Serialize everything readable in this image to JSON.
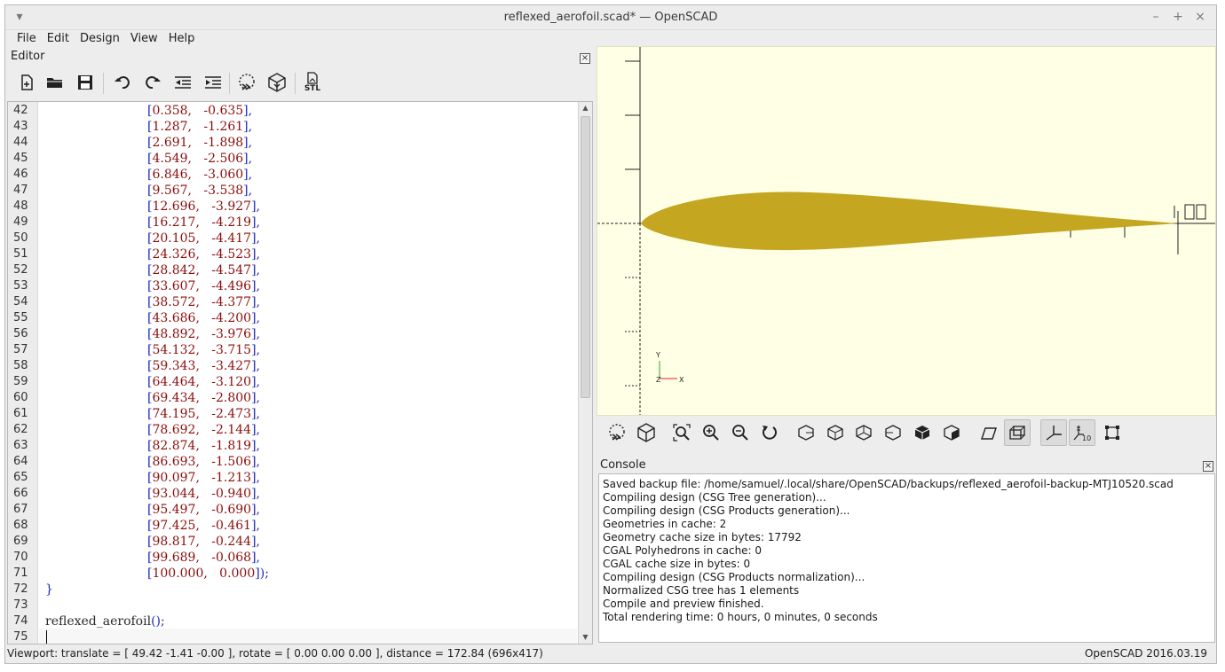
{
  "window": {
    "title": "reflexed_aerofoil.scad* — OpenSCAD",
    "menu_icon": "chevron-down-icon",
    "minimize_icon": "minimize-icon",
    "maximize_icon": "maximize-icon",
    "close_icon": "close-icon"
  },
  "menu": [
    "File",
    "Edit",
    "Design",
    "View",
    "Help"
  ],
  "editor": {
    "title": "Editor",
    "toolbar": [
      "new-file-icon",
      "open-file-icon",
      "save-file-icon",
      "undo-icon",
      "redo-icon",
      "unindent-icon",
      "indent-icon",
      "preview-icon",
      "render-icon",
      "export-stl-icon"
    ],
    "stl_label": "STL",
    "lines": [
      {
        "n": "42",
        "x": "0.358,",
        "y": "-0.635"
      },
      {
        "n": "43",
        "x": "1.287,",
        "y": "-1.261"
      },
      {
        "n": "44",
        "x": "2.691,",
        "y": "-1.898"
      },
      {
        "n": "45",
        "x": "4.549,",
        "y": "-2.506"
      },
      {
        "n": "46",
        "x": "6.846,",
        "y": "-3.060"
      },
      {
        "n": "47",
        "x": "9.567,",
        "y": "-3.538"
      },
      {
        "n": "48",
        "x": "12.696,",
        "y": "-3.927"
      },
      {
        "n": "49",
        "x": "16.217,",
        "y": "-4.219"
      },
      {
        "n": "50",
        "x": "20.105,",
        "y": "-4.417"
      },
      {
        "n": "51",
        "x": "24.326,",
        "y": "-4.523"
      },
      {
        "n": "52",
        "x": "28.842,",
        "y": "-4.547"
      },
      {
        "n": "53",
        "x": "33.607,",
        "y": "-4.496"
      },
      {
        "n": "54",
        "x": "38.572,",
        "y": "-4.377"
      },
      {
        "n": "55",
        "x": "43.686,",
        "y": "-4.200"
      },
      {
        "n": "56",
        "x": "48.892,",
        "y": "-3.976"
      },
      {
        "n": "57",
        "x": "54.132,",
        "y": "-3.715"
      },
      {
        "n": "58",
        "x": "59.343,",
        "y": "-3.427"
      },
      {
        "n": "59",
        "x": "64.464,",
        "y": "-3.120"
      },
      {
        "n": "60",
        "x": "69.434,",
        "y": "-2.800"
      },
      {
        "n": "61",
        "x": "74.195,",
        "y": "-2.473"
      },
      {
        "n": "62",
        "x": "78.692,",
        "y": "-2.144"
      },
      {
        "n": "63",
        "x": "82.874,",
        "y": "-1.819"
      },
      {
        "n": "64",
        "x": "86.693,",
        "y": "-1.506"
      },
      {
        "n": "65",
        "x": "90.097,",
        "y": "-1.213"
      },
      {
        "n": "66",
        "x": "93.044,",
        "y": "-0.940"
      },
      {
        "n": "67",
        "x": "95.497,",
        "y": "-0.690"
      },
      {
        "n": "68",
        "x": "97.425,",
        "y": "-0.461"
      },
      {
        "n": "69",
        "x": "98.817,",
        "y": "-0.244"
      },
      {
        "n": "70",
        "x": "99.689,",
        "y": "-0.068"
      },
      {
        "n": "71",
        "x": "100.000,",
        "y": "0.000"
      }
    ],
    "line72": {
      "n": "72",
      "text": "}"
    },
    "line73": {
      "n": "73",
      "text": ""
    },
    "line74": {
      "n": "74",
      "call": "reflexed_aerofoil",
      "parens": "();"
    },
    "line75": {
      "n": "75",
      "text": ""
    },
    "last_close": "]);"
  },
  "view": {
    "background": "#ffffe5",
    "model_color": "#c4a620",
    "axis_y_label": "Y",
    "axis_z_label": "Z",
    "axis_x_label": "X"
  },
  "view_toolbar": [
    "preview-icon",
    "render-icon",
    "view-all-icon",
    "zoom-in-icon",
    "zoom-out-icon",
    "reset-view-icon",
    "view-right-icon",
    "view-top-icon",
    "view-bottom-icon",
    "view-left-icon",
    "view-front-icon",
    "view-back-icon",
    "perspective-icon",
    "orthogonal-icon",
    "show-axes-icon",
    "show-scale-markers-icon",
    "show-edges-icon"
  ],
  "console": {
    "title": "Console",
    "lines": [
      "Saved backup file: /home/samuel/.local/share/OpenSCAD/backups/reflexed_aerofoil-backup-MTJ10520.scad",
      "Compiling design (CSG Tree generation)...",
      "Compiling design (CSG Products generation)...",
      "Geometries in cache: 2",
      "Geometry cache size in bytes: 17792",
      "CGAL Polyhedrons in cache: 0",
      "CGAL cache size in bytes: 0",
      "Compiling design (CSG Products normalization)...",
      "Normalized CSG tree has 1 elements",
      "Compile and preview finished.",
      "Total rendering time: 0 hours, 0 minutes, 0 seconds"
    ]
  },
  "status": {
    "viewport": "Viewport: translate = [ 49.42 -1.41 -0.00 ], rotate = [ 0.00 0.00 0.00 ], distance = 172.84 (696x417)",
    "version": "OpenSCAD 2016.03.19"
  }
}
